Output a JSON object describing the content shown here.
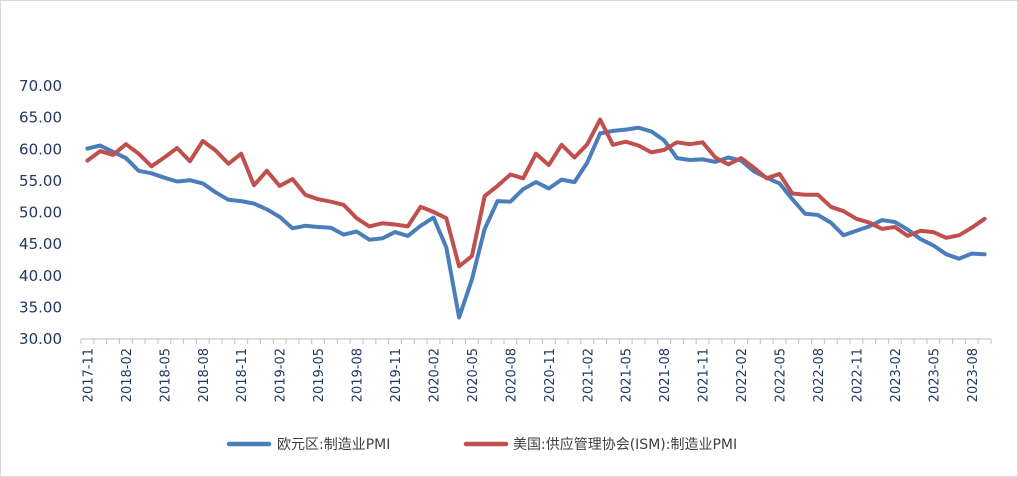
{
  "chart_data": {
    "type": "line",
    "title": "",
    "xlabel": "",
    "ylabel": "",
    "ylim": [
      30,
      70
    ],
    "yticks": [
      "30.00",
      "35.00",
      "40.00",
      "45.00",
      "50.00",
      "55.00",
      "60.00",
      "65.00",
      "70.00"
    ],
    "grid": false,
    "legend_position": "bottom",
    "x_tick_labels": [
      "2017-11",
      "2018-02",
      "2018-05",
      "2018-08",
      "2018-11",
      "2019-02",
      "2019-05",
      "2019-08",
      "2019-11",
      "2020-02",
      "2020-05",
      "2020-08",
      "2020-11",
      "2021-02",
      "2021-05",
      "2021-08",
      "2021-11",
      "2022-02",
      "2022-05",
      "2022-08",
      "2022-11",
      "2023-02",
      "2023-05",
      "2023-08"
    ],
    "x": [
      "2017-11",
      "2017-12",
      "2018-01",
      "2018-02",
      "2018-03",
      "2018-04",
      "2018-05",
      "2018-06",
      "2018-07",
      "2018-08",
      "2018-09",
      "2018-10",
      "2018-11",
      "2018-12",
      "2019-01",
      "2019-02",
      "2019-03",
      "2019-04",
      "2019-05",
      "2019-06",
      "2019-07",
      "2019-08",
      "2019-09",
      "2019-10",
      "2019-11",
      "2019-12",
      "2020-01",
      "2020-02",
      "2020-03",
      "2020-04",
      "2020-05",
      "2020-06",
      "2020-07",
      "2020-08",
      "2020-09",
      "2020-10",
      "2020-11",
      "2020-12",
      "2021-01",
      "2021-02",
      "2021-03",
      "2021-04",
      "2021-05",
      "2021-06",
      "2021-07",
      "2021-08",
      "2021-09",
      "2021-10",
      "2021-11",
      "2021-12",
      "2022-01",
      "2022-02",
      "2022-03",
      "2022-04",
      "2022-05",
      "2022-06",
      "2022-07",
      "2022-08",
      "2022-09",
      "2022-10",
      "2022-11",
      "2022-12",
      "2023-01",
      "2023-02",
      "2023-03",
      "2023-04",
      "2023-05",
      "2023-06",
      "2023-07",
      "2023-08",
      "2023-09"
    ],
    "series": [
      {
        "name": "欧元区:制造业PMI",
        "color": "#4a7ebb",
        "values": [
          60.1,
          60.6,
          59.6,
          58.6,
          56.6,
          56.2,
          55.5,
          54.9,
          55.1,
          54.6,
          53.2,
          52.0,
          51.8,
          51.4,
          50.5,
          49.3,
          47.5,
          47.9,
          47.7,
          47.6,
          46.5,
          47.0,
          45.7,
          45.9,
          46.9,
          46.3,
          47.9,
          49.2,
          44.5,
          33.4,
          39.4,
          47.4,
          51.8,
          51.7,
          53.7,
          54.8,
          53.8,
          55.2,
          54.8,
          57.9,
          62.5,
          62.9,
          63.1,
          63.4,
          62.8,
          61.4,
          58.6,
          58.3,
          58.4,
          58.0,
          58.7,
          58.2,
          56.5,
          55.5,
          54.6,
          52.1,
          49.8,
          49.6,
          48.4,
          46.4,
          47.1,
          47.8,
          48.8,
          48.5,
          47.3,
          45.8,
          44.8,
          43.4,
          42.7,
          43.5,
          43.4
        ]
      },
      {
        "name": "美国:供应管理协会(ISM):制造业PMI",
        "color": "#c0504d",
        "values": [
          58.2,
          59.7,
          59.1,
          60.8,
          59.3,
          57.3,
          58.7,
          60.2,
          58.1,
          61.3,
          59.8,
          57.7,
          59.3,
          54.3,
          56.6,
          54.2,
          55.3,
          52.8,
          52.1,
          51.7,
          51.2,
          49.1,
          47.8,
          48.3,
          48.1,
          47.8,
          50.9,
          50.1,
          49.1,
          41.5,
          43.1,
          52.6,
          54.2,
          56.0,
          55.4,
          59.3,
          57.5,
          60.7,
          58.7,
          60.8,
          64.7,
          60.7,
          61.2,
          60.6,
          59.5,
          59.9,
          61.1,
          60.8,
          61.1,
          58.7,
          57.6,
          58.6,
          57.1,
          55.4,
          56.1,
          53.0,
          52.8,
          52.8,
          50.9,
          50.2,
          49.0,
          48.4,
          47.4,
          47.7,
          46.3,
          47.1,
          46.9,
          46.0,
          46.4,
          47.6,
          49.0
        ]
      }
    ]
  }
}
